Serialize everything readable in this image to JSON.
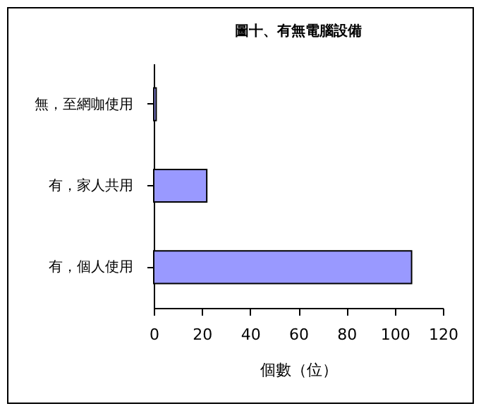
{
  "chart_data": {
    "type": "bar",
    "orientation": "horizontal",
    "title": "圖十、有無電腦設備",
    "xlabel": "個數（位）",
    "categories": [
      "無，至網咖使用",
      "有，家人共用",
      "有，個人使用"
    ],
    "values": [
      1,
      22,
      107
    ],
    "color": "#9999ff",
    "xlim": [
      0,
      120
    ],
    "xticks": [
      0,
      20,
      40,
      60,
      80,
      100,
      120
    ],
    "grid": false
  }
}
